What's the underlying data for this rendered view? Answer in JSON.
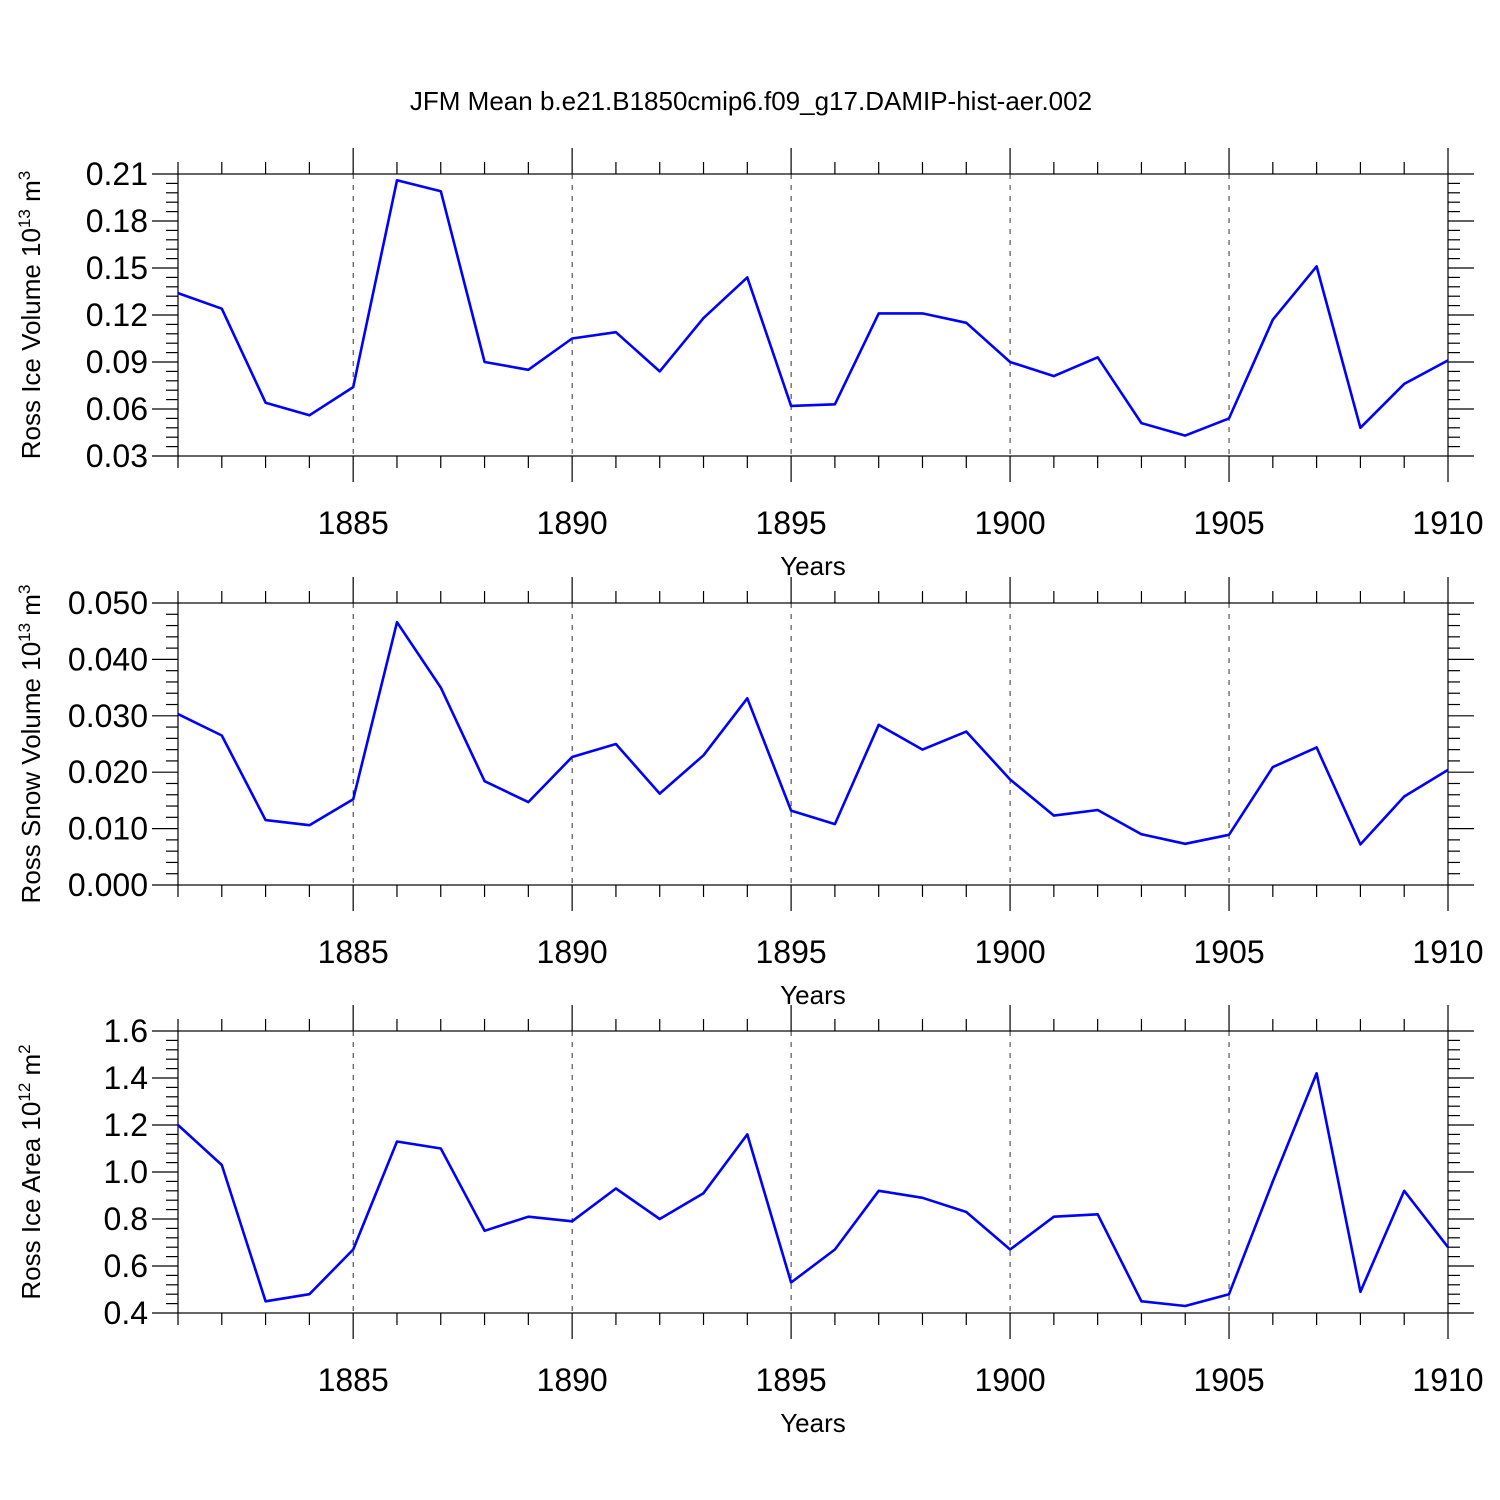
{
  "title": "JFM Mean b.e21.B1850cmip6.f09_g17.DAMIP-hist-aer.002",
  "line_color": "#0000ff",
  "chart_data": [
    {
      "type": "line",
      "ylabel_main": "Ross Ice Volume 10",
      "ylabel_exp": "13",
      "ylabel_unit": " m",
      "ylabel_unit_exp": "3",
      "xlabel": "Years",
      "xlim": [
        1881,
        1910
      ],
      "ylim": [
        0.03,
        0.21
      ],
      "yticks": [
        0.03,
        0.06,
        0.09,
        0.12,
        0.15,
        0.18,
        0.21
      ],
      "ytick_labels": [
        "0.03",
        "0.06",
        "0.09",
        "0.12",
        "0.15",
        "0.18",
        "0.21"
      ],
      "xticks": [
        1885,
        1890,
        1895,
        1900,
        1905,
        1910
      ],
      "xtick_labels": [
        "1885",
        "1890",
        "1895",
        "1900",
        "1905",
        "1910"
      ],
      "y_minor_step": 0.006,
      "grid_x": true,
      "series": [
        {
          "x": [
            1881,
            1882,
            1883,
            1884,
            1885,
            1886,
            1887,
            1888,
            1889,
            1890,
            1891,
            1892,
            1893,
            1894,
            1895,
            1896,
            1897,
            1898,
            1899,
            1900,
            1901,
            1902,
            1903,
            1904,
            1905,
            1906,
            1907,
            1908,
            1909,
            1910
          ],
          "values": [
            0.134,
            0.124,
            0.064,
            0.056,
            0.074,
            0.206,
            0.199,
            0.09,
            0.085,
            0.105,
            0.109,
            0.084,
            0.118,
            0.144,
            0.062,
            0.063,
            0.121,
            0.121,
            0.115,
            0.09,
            0.081,
            0.093,
            0.051,
            0.043,
            0.054,
            0.117,
            0.151,
            0.048,
            0.076,
            0.091
          ]
        }
      ]
    },
    {
      "type": "line",
      "ylabel_main": "Ross Snow Volume 10",
      "ylabel_exp": "13",
      "ylabel_unit": " m",
      "ylabel_unit_exp": "3",
      "xlabel": "Years",
      "xlim": [
        1881,
        1910
      ],
      "ylim": [
        0.0,
        0.05
      ],
      "yticks": [
        0.0,
        0.01,
        0.02,
        0.03,
        0.04,
        0.05
      ],
      "ytick_labels": [
        "0.000",
        "0.010",
        "0.020",
        "0.030",
        "0.040",
        "0.050"
      ],
      "xticks": [
        1885,
        1890,
        1895,
        1900,
        1905,
        1910
      ],
      "xtick_labels": [
        "1885",
        "1890",
        "1895",
        "1900",
        "1905",
        "1910"
      ],
      "y_minor_step": 0.002,
      "grid_x": true,
      "series": [
        {
          "x": [
            1881,
            1882,
            1883,
            1884,
            1885,
            1886,
            1887,
            1888,
            1889,
            1890,
            1891,
            1892,
            1893,
            1894,
            1895,
            1896,
            1897,
            1898,
            1899,
            1900,
            1901,
            1902,
            1903,
            1904,
            1905,
            1906,
            1907,
            1908,
            1909,
            1910
          ],
          "values": [
            0.0303,
            0.0265,
            0.0115,
            0.0106,
            0.0152,
            0.0466,
            0.035,
            0.0184,
            0.0147,
            0.0227,
            0.025,
            0.0162,
            0.023,
            0.0331,
            0.0132,
            0.0108,
            0.0284,
            0.024,
            0.0272,
            0.0187,
            0.0123,
            0.0133,
            0.009,
            0.0073,
            0.0089,
            0.0209,
            0.0244,
            0.0072,
            0.0157,
            0.0204
          ]
        }
      ]
    },
    {
      "type": "line",
      "ylabel_main": "Ross Ice Area 10",
      "ylabel_exp": "12",
      "ylabel_unit": " m",
      "ylabel_unit_exp": "2",
      "xlabel": "Years",
      "xlim": [
        1881,
        1910
      ],
      "ylim": [
        0.4,
        1.6
      ],
      "yticks": [
        0.4,
        0.6,
        0.8,
        1.0,
        1.2,
        1.4,
        1.6
      ],
      "ytick_labels": [
        "0.4",
        "0.6",
        "0.8",
        "1.0",
        "1.2",
        "1.4",
        "1.6"
      ],
      "xticks": [
        1885,
        1890,
        1895,
        1900,
        1905,
        1910
      ],
      "xtick_labels": [
        "1885",
        "1890",
        "1895",
        "1900",
        "1905",
        "1910"
      ],
      "y_minor_step": 0.04,
      "grid_x": true,
      "series": [
        {
          "x": [
            1881,
            1882,
            1883,
            1884,
            1885,
            1886,
            1887,
            1888,
            1889,
            1890,
            1891,
            1892,
            1893,
            1894,
            1895,
            1896,
            1897,
            1898,
            1899,
            1900,
            1901,
            1902,
            1903,
            1904,
            1905,
            1906,
            1907,
            1908,
            1909,
            1910
          ],
          "values": [
            1.2,
            1.03,
            0.45,
            0.48,
            0.67,
            1.13,
            1.1,
            0.75,
            0.81,
            0.79,
            0.93,
            0.8,
            0.91,
            1.16,
            0.53,
            0.67,
            0.92,
            0.89,
            0.83,
            0.67,
            0.81,
            0.82,
            0.45,
            0.43,
            0.48,
            0.96,
            1.42,
            0.49,
            0.92,
            0.68
          ]
        }
      ]
    }
  ]
}
